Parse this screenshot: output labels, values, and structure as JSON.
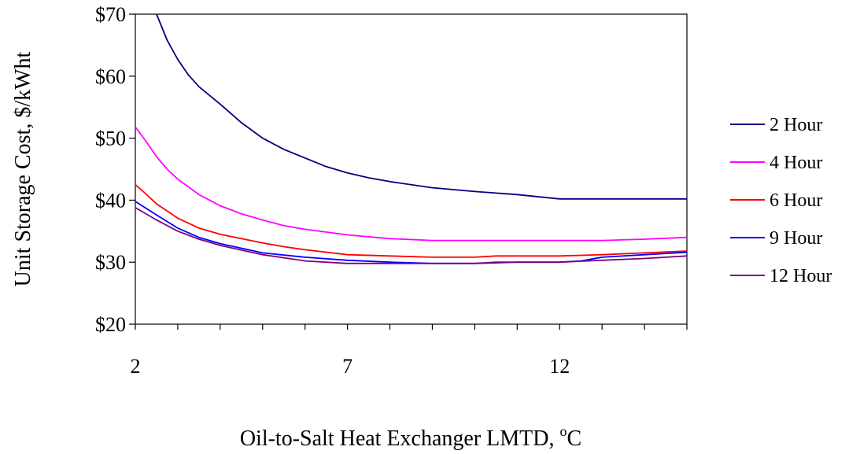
{
  "chart_data": {
    "type": "line",
    "title": "",
    "xlabel": "Oil-to-Salt Heat Exchanger LMTD, ",
    "xlabel_sup": "o",
    "xlabel_unit": "C",
    "ylabel": "Unit Storage Cost, $/kWht",
    "xlim": [
      2,
      15
    ],
    "ylim": [
      20,
      70
    ],
    "x_ticks": [
      2,
      7,
      12
    ],
    "y_ticks": [
      "$20",
      "$30",
      "$40",
      "$50",
      "$60",
      "$70"
    ],
    "y_tick_values": [
      20,
      30,
      40,
      50,
      60,
      70
    ],
    "legend_position": "right",
    "grid": false,
    "series": [
      {
        "name": "2 Hour",
        "color": "#000080",
        "x": [
          2.5,
          2.75,
          3,
          3.25,
          3.5,
          4,
          4.5,
          5,
          5.5,
          6,
          6.5,
          7,
          7.5,
          8,
          9,
          10,
          11,
          12,
          13,
          14,
          15
        ],
        "y": [
          70,
          65.8,
          62.7,
          60.2,
          58.3,
          55.5,
          52.5,
          50,
          48.2,
          46.8,
          45.4,
          44.4,
          43.6,
          43.0,
          42.0,
          41.4,
          40.9,
          40.2,
          40.2,
          40.2,
          40.2
        ]
      },
      {
        "name": "4 Hour",
        "color": "#FF00FF",
        "x": [
          2,
          2.25,
          2.5,
          2.75,
          3,
          3.5,
          4,
          4.5,
          5,
          5.5,
          6,
          7,
          8,
          9,
          10,
          11,
          12,
          13,
          14,
          15
        ],
        "y": [
          51.8,
          49.5,
          47,
          45,
          43.4,
          40.9,
          39.1,
          37.8,
          36.8,
          35.9,
          35.3,
          34.4,
          33.8,
          33.5,
          33.5,
          33.5,
          33.5,
          33.5,
          33.7,
          34.0
        ]
      },
      {
        "name": "6 Hour",
        "color": "#FF0000",
        "x": [
          2,
          2.25,
          2.5,
          3,
          3.5,
          4,
          4.5,
          5,
          5.5,
          6,
          7,
          8,
          9,
          10,
          10.5,
          11,
          12,
          13,
          14,
          15
        ],
        "y": [
          42.5,
          41.0,
          39.4,
          37.1,
          35.5,
          34.5,
          33.8,
          33.1,
          32.5,
          32.0,
          31.2,
          31.0,
          30.8,
          30.8,
          31.0,
          31.0,
          31.0,
          31.2,
          31.5,
          31.8
        ]
      },
      {
        "name": "9 Hour",
        "color": "#0000FF",
        "x": [
          2,
          2.5,
          3,
          3.5,
          4,
          5,
          6,
          7,
          8,
          9,
          10,
          11,
          12,
          12.5,
          13,
          14,
          15
        ],
        "y": [
          39.8,
          37.6,
          35.5,
          34.0,
          33.0,
          31.5,
          30.8,
          30.3,
          30.0,
          29.8,
          29.8,
          30.0,
          30.0,
          30.2,
          30.8,
          31.2,
          31.6
        ]
      },
      {
        "name": "12 Hour",
        "color": "#800080",
        "x": [
          2,
          2.5,
          3,
          3.5,
          4,
          5,
          6,
          7,
          8,
          9,
          10,
          10.5,
          11,
          12,
          13,
          14,
          15
        ],
        "y": [
          38.8,
          36.8,
          35.0,
          33.7,
          32.7,
          31.2,
          30.2,
          29.8,
          29.8,
          29.8,
          29.8,
          30.0,
          30.0,
          30.0,
          30.3,
          30.6,
          31.0
        ]
      }
    ]
  }
}
